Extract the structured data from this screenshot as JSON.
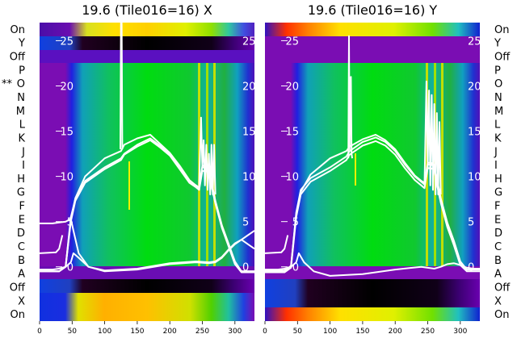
{
  "chart_data": [
    {
      "type": "heatmap",
      "panel": "X",
      "title": "19.6 (Tile016=16) X",
      "row_labels": [
        "On",
        "Y",
        "Off",
        "P",
        "O",
        "N",
        "M",
        "L",
        "K",
        "J",
        "I",
        "H",
        "G",
        "F",
        "E",
        "D",
        "C",
        "B",
        "A",
        "Off",
        "X",
        "On"
      ],
      "row_markers": {
        "O": "**"
      },
      "xlim": [
        0,
        330
      ],
      "x_ticks": [
        0,
        50,
        100,
        150,
        200,
        250,
        300
      ],
      "overlay_y_ticks": [
        0,
        5,
        10,
        15,
        20,
        25
      ],
      "overlay_ylim": [
        -6,
        27
      ],
      "overlay_tick_side": "inner",
      "series": [
        {
          "x": [
            0,
            30,
            40,
            48,
            55,
            70,
            100,
            125,
            130,
            150,
            170,
            185,
            200,
            215,
            230,
            240,
            245,
            250,
            255,
            260,
            265,
            270,
            280,
            290,
            300,
            310,
            320,
            330
          ],
          "values": [
            -0.5,
            -0.5,
            0,
            5.5,
            7.5,
            9.5,
            11,
            12,
            12.5,
            13.5,
            14.2,
            13.4,
            12.5,
            11,
            9.5,
            9,
            8.7,
            11,
            11,
            10.8,
            8.8,
            7.2,
            4.5,
            2.5,
            0.5,
            -0.5,
            -0.5,
            -0.5
          ]
        },
        {
          "x": [
            0,
            30,
            40,
            48,
            55,
            70,
            100,
            125,
            130,
            150,
            170,
            185,
            200,
            215,
            230,
            240,
            245,
            250,
            255,
            260,
            265,
            270,
            280,
            290,
            300,
            310,
            320,
            330
          ],
          "values": [
            -0.5,
            -0.5,
            0,
            5,
            7.3,
            9.3,
            10.8,
            11.8,
            12.4,
            13.3,
            14,
            13.2,
            12.3,
            10.8,
            9.3,
            8.8,
            8.5,
            10.6,
            10.6,
            10.4,
            8.6,
            7,
            4.3,
            2.3,
            0.3,
            -0.6,
            -0.6,
            -0.6
          ]
        },
        {
          "x": [
            0,
            30,
            40,
            48,
            55,
            70,
            100,
            125,
            130,
            150,
            170,
            185,
            200,
            215,
            230,
            240,
            245,
            250,
            255,
            260,
            265,
            270,
            280,
            290,
            300,
            310,
            320,
            330
          ],
          "values": [
            -0.5,
            -0.5,
            0,
            5.2,
            7.6,
            10,
            12,
            12.8,
            13.5,
            14.2,
            14.6,
            13.6,
            12.6,
            11.2,
            9.6,
            9,
            8.8,
            11.2,
            11.2,
            11,
            9,
            7.3,
            4.6,
            2.6,
            0.6,
            -0.5,
            -0.5,
            -0.5
          ]
        },
        {
          "x": [
            0,
            20,
            30,
            40,
            48,
            52,
            60,
            75,
            100,
            150,
            200,
            240,
            260,
            270,
            280,
            290,
            300,
            310,
            320,
            330
          ],
          "values": [
            4.8,
            4.8,
            4.9,
            5,
            5.3,
            4,
            1.5,
            0,
            -0.5,
            -0.3,
            0.3,
            0.5,
            0.4,
            0.5,
            1,
            1.8,
            2.5,
            3,
            3.5,
            4
          ]
        },
        {
          "x": [
            0,
            25,
            30,
            35
          ],
          "values": [
            1.5,
            1.6,
            2,
            3.5
          ]
        },
        {
          "x": [
            0,
            20,
            30,
            40,
            48,
            52,
            60,
            75,
            100,
            150,
            200,
            240,
            260,
            270,
            280,
            290,
            300,
            310,
            320,
            330
          ],
          "values": [
            -0.3,
            -0.3,
            -0.2,
            0,
            0.5,
            1.5,
            1,
            0,
            -0.4,
            -0.2,
            0.4,
            0.6,
            0.5,
            0.6,
            1.1,
            1.9,
            2.6,
            3,
            2.5,
            2
          ]
        },
        {
          "x": [
            124,
            125,
            126,
            127
          ],
          "values": [
            13,
            28,
            27,
            13
          ]
        },
        {
          "x": [
            245,
            248,
            250,
            252,
            254,
            256,
            258,
            260,
            262,
            264,
            266,
            268,
            270
          ],
          "values": [
            9,
            16.5,
            11,
            14,
            9,
            13.5,
            8.5,
            12.5,
            8,
            13.5,
            8,
            13.5,
            8
          ]
        }
      ]
    },
    {
      "type": "heatmap",
      "panel": "Y",
      "title": "19.6 (Tile016=16) Y",
      "row_labels": [
        "On",
        "Y",
        "Off",
        "P",
        "O",
        "N",
        "M",
        "L",
        "K",
        "J",
        "I",
        "H",
        "G",
        "F",
        "E",
        "D",
        "C",
        "B",
        "A",
        "Off",
        "X",
        "On"
      ],
      "xlim": [
        0,
        330
      ],
      "x_ticks": [
        0,
        50,
        100,
        150,
        200,
        250,
        300
      ],
      "overlay_y_ticks": [
        0,
        5,
        10,
        15,
        20,
        25
      ],
      "overlay_ylim": [
        -6,
        27
      ],
      "overlay_tick_side": "inner",
      "series": [
        {
          "x": [
            0,
            30,
            40,
            48,
            55,
            70,
            100,
            125,
            130,
            150,
            170,
            185,
            200,
            215,
            230,
            240,
            245,
            250,
            255,
            260,
            265,
            270,
            280,
            290,
            300,
            310,
            320,
            330
          ],
          "values": [
            -0.5,
            -0.5,
            0,
            6,
            8.5,
            9.8,
            11,
            12.2,
            12.8,
            13.8,
            14.3,
            13.8,
            12.8,
            11.3,
            10,
            9.4,
            9.1,
            11.3,
            11.3,
            11.1,
            9.2,
            7.5,
            4.8,
            2.8,
            0.5,
            -0.3,
            -0.3,
            -0.3
          ]
        },
        {
          "x": [
            0,
            30,
            40,
            48,
            55,
            70,
            100,
            125,
            130,
            150,
            170,
            185,
            200,
            215,
            230,
            240,
            245,
            250,
            255,
            260,
            265,
            270,
            280,
            290,
            300,
            310,
            320,
            330
          ],
          "values": [
            -0.6,
            -0.6,
            -0.1,
            5.5,
            8,
            9.4,
            10.6,
            11.8,
            12.4,
            13.4,
            13.9,
            13.4,
            12.4,
            10.9,
            9.6,
            9,
            8.7,
            10.9,
            10.9,
            10.7,
            8.8,
            7.1,
            4.4,
            2.4,
            0.2,
            -0.5,
            -0.5,
            -0.5
          ]
        },
        {
          "x": [
            0,
            30,
            40,
            48,
            55,
            70,
            100,
            125,
            130,
            150,
            170,
            185,
            200,
            215,
            230,
            240,
            245,
            250,
            255,
            260,
            265,
            270,
            280,
            290,
            300,
            310,
            320,
            330
          ],
          "values": [
            -0.4,
            -0.4,
            0.1,
            5.8,
            8.3,
            10.2,
            12,
            12.8,
            13.3,
            14.1,
            14.6,
            14,
            13,
            11.5,
            10.1,
            9.5,
            9.3,
            11.5,
            11.5,
            11.3,
            9.4,
            7.6,
            4.9,
            2.9,
            0.6,
            -0.3,
            -0.3,
            -0.3
          ]
        },
        {
          "x": [
            0,
            20,
            30,
            40,
            48,
            52,
            60,
            75,
            100,
            150,
            200,
            240,
            260,
            270,
            280,
            290,
            300,
            310,
            320,
            330
          ],
          "values": [
            -0.3,
            -0.3,
            -0.2,
            0,
            0.5,
            1.5,
            0.5,
            -0.5,
            -1,
            -0.8,
            -0.3,
            0,
            -0.2,
            0,
            0.3,
            0.4,
            0.2,
            -0.1,
            -0.2,
            -0.2
          ]
        },
        {
          "x": [
            0,
            25,
            30,
            35
          ],
          "values": [
            1.5,
            1.6,
            2,
            3.5
          ]
        },
        {
          "x": [
            128,
            129,
            130,
            131,
            132,
            133,
            134
          ],
          "values": [
            12,
            25.5,
            13,
            20,
            21,
            12.5,
            12
          ]
        },
        {
          "x": [
            245,
            248,
            250,
            252,
            254,
            256,
            258,
            260,
            262,
            264,
            266,
            268,
            270
          ],
          "values": [
            9,
            20.5,
            11,
            19.5,
            9,
            19,
            8.5,
            18,
            8,
            17,
            8,
            16,
            8
          ]
        }
      ]
    }
  ],
  "heatmap_colors": {
    "purple": "#7a0db3",
    "violet": "#5a0cbd",
    "blue": "#1a2ee0",
    "cyan": "#10a0b8",
    "green": "#12c21a",
    "bright_green": "#00e400",
    "yellow": "#f0f000",
    "red": "#ff2000",
    "black": "#000000",
    "line": "#ffffff"
  }
}
